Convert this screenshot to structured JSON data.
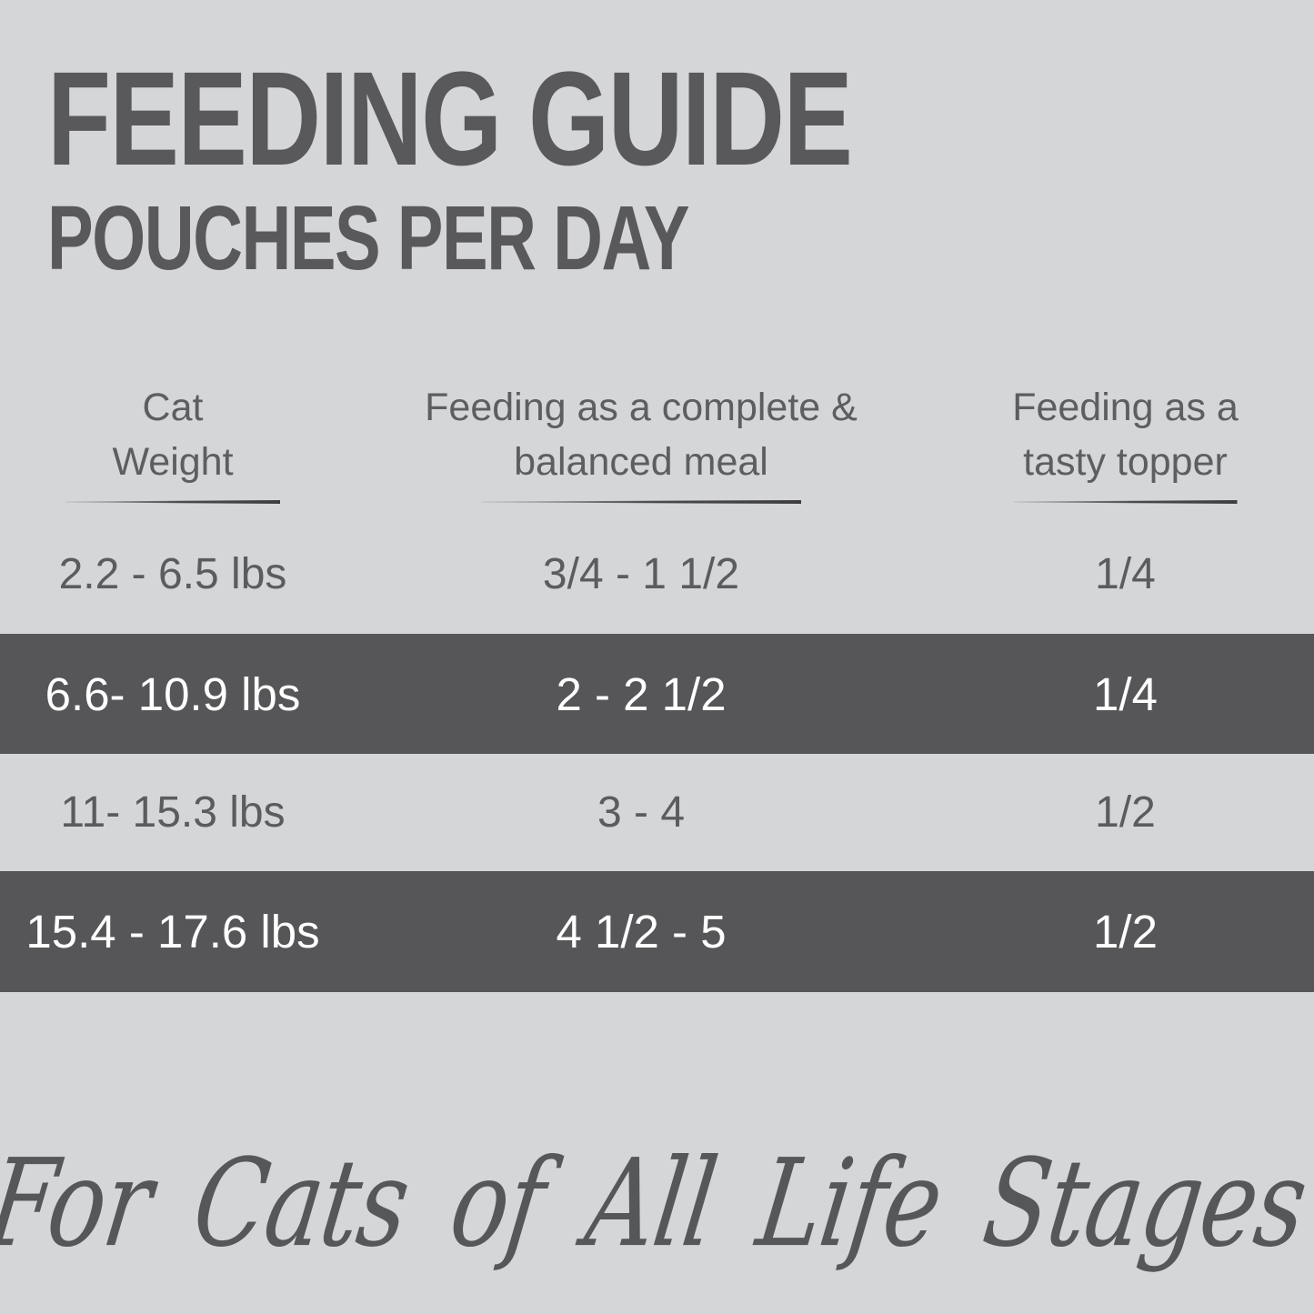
{
  "page": {
    "background_color": "#d5d6d7",
    "band_color": "#565658",
    "title_color": "#59595b",
    "body_text_color": "#5b5c5e",
    "band_text_color": "#ffffff"
  },
  "title": {
    "line1": "FEEDING GUIDE",
    "line2": "POUCHES PER DAY"
  },
  "table": {
    "columns": [
      {
        "label_line1": "Cat",
        "label_line2": "Weight"
      },
      {
        "label_line1": "Feeding as a complete &",
        "label_line2": "balanced meal"
      },
      {
        "label_line1": "Feeding as a",
        "label_line2": "tasty topper"
      }
    ],
    "rows": [
      {
        "cat_weight": "2.2 - 6.5 lbs",
        "complete_meal": "3/4 - 1 1/2",
        "tasty_topper": "1/4",
        "highlighted": false
      },
      {
        "cat_weight": "6.6- 10.9 lbs",
        "complete_meal": "2 - 2 1/2",
        "tasty_topper": "1/4",
        "highlighted": true
      },
      {
        "cat_weight": "11- 15.3 lbs",
        "complete_meal": "3 - 4",
        "tasty_topper": "1/2",
        "highlighted": false
      },
      {
        "cat_weight": "15.4 - 17.6 lbs",
        "complete_meal": "4 1/2 - 5",
        "tasty_topper": "1/2",
        "highlighted": true
      }
    ]
  },
  "footer": {
    "tagline": "For Cats of All Life Stages"
  },
  "chart_data": {
    "type": "table",
    "title": "FEEDING GUIDE",
    "subtitle": "POUCHES PER DAY",
    "columns": [
      "Cat Weight",
      "Feeding as a complete & balanced meal",
      "Feeding as a tasty topper"
    ],
    "rows": [
      [
        "2.2 - 6.5 lbs",
        "3/4 - 1 1/2",
        "1/4"
      ],
      [
        "6.6- 10.9 lbs",
        "2 - 2 1/2",
        "1/4"
      ],
      [
        "11- 15.3 lbs",
        "3 - 4",
        "1/2"
      ],
      [
        "15.4 - 17.6 lbs",
        "4 1/2 - 5",
        "1/2"
      ]
    ],
    "highlighted_row_indices": [
      1,
      3
    ],
    "footnote": "For Cats of All Life Stages",
    "legend_position": "none",
    "grid": false
  }
}
